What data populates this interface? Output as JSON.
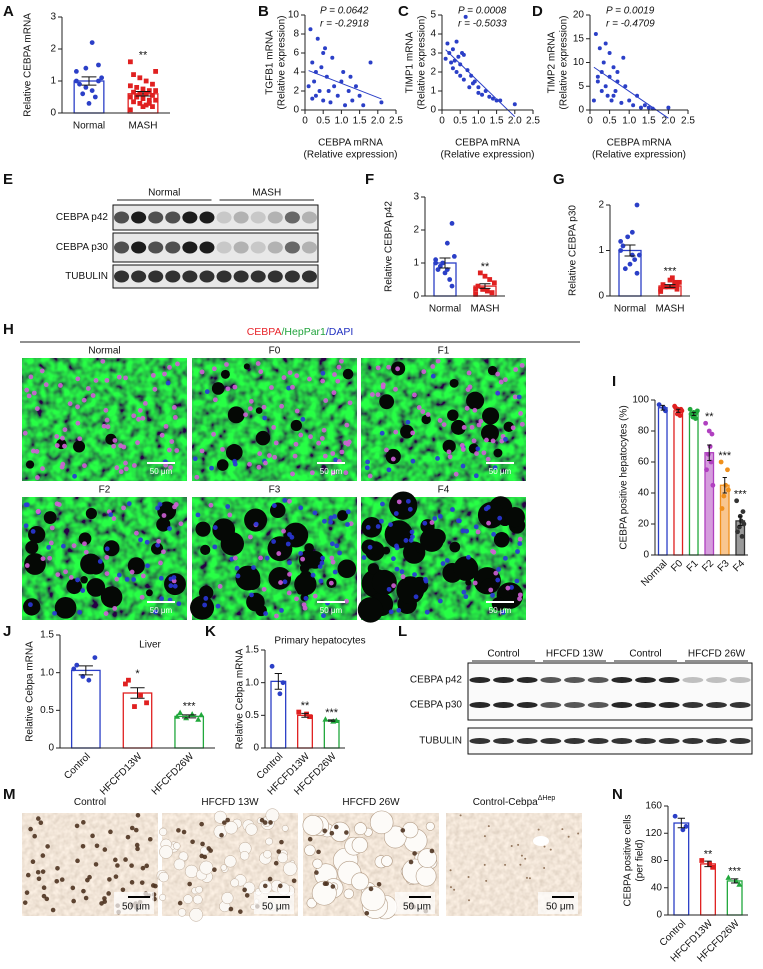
{
  "chart_data": [
    {
      "type": "bar",
      "panel": "A",
      "ylabel": [
        "Relative CEBPA mRNA"
      ],
      "categories": [
        "Normal",
        "MASH"
      ],
      "values": [
        1.0,
        0.6
      ],
      "errors": [
        0.13,
        0.07
      ],
      "colors": [
        "#2b3fc7",
        "#e02020"
      ],
      "markers": [
        "circle",
        "square"
      ],
      "points": [
        [
          1.0,
          1.5,
          2.2,
          0.8,
          0.9,
          1.1,
          0.5,
          0.3,
          0.6,
          1.3,
          1.0,
          0.7,
          1.4
        ],
        [
          0.1,
          0.2,
          0.25,
          0.3,
          0.35,
          0.4,
          0.4,
          0.45,
          0.5,
          0.5,
          0.55,
          0.6,
          0.6,
          0.65,
          0.7,
          0.7,
          0.75,
          0.8,
          0.85,
          0.9,
          1.0,
          1.1,
          1.2,
          1.3,
          0.3,
          0.2,
          0.5,
          1.6
        ]
      ],
      "annotations": [
        null,
        "**"
      ],
      "ylim": [
        0,
        3
      ],
      "yticks": [
        0,
        1,
        2,
        3
      ]
    },
    {
      "type": "scatter",
      "panel": "B",
      "p_text": "P = 0.0642",
      "r_text": "r = -0.2918",
      "xlabel": [
        "CEBPA mRNA",
        "(Relative expression)"
      ],
      "ylabel": [
        "TGFB1 mRNA",
        "(Relative expression)"
      ],
      "color": "#2b3fc7",
      "x": [
        0.1,
        0.15,
        0.2,
        0.25,
        0.3,
        0.35,
        0.4,
        0.45,
        0.5,
        0.55,
        0.6,
        0.65,
        0.7,
        0.75,
        0.8,
        0.9,
        1.0,
        1.05,
        1.1,
        1.2,
        1.25,
        1.3,
        1.4,
        1.5,
        1.6,
        1.8,
        2.1,
        0.3,
        0.5,
        0.2
      ],
      "y": [
        2.5,
        8.5,
        5.0,
        3.0,
        1.5,
        7.5,
        2.0,
        4.5,
        1.0,
        6.5,
        3.5,
        2.0,
        0.8,
        5.5,
        2.5,
        1.5,
        3.0,
        4.0,
        0.5,
        2.0,
        3.5,
        1.0,
        2.5,
        1.5,
        0.5,
        5.0,
        0.8,
        4.0,
        6.0,
        1.2
      ],
      "xlim": [
        0,
        2.5
      ],
      "ylim": [
        0,
        10
      ],
      "xticks": [
        0,
        0.5,
        {
          "value": 1,
          "label": "1.0"
        },
        1.5,
        {
          "value": 2,
          "label": "2.0"
        },
        2.5
      ],
      "yticks": [
        0,
        2,
        4,
        6,
        8,
        10
      ]
    },
    {
      "type": "scatter",
      "panel": "C",
      "p_text": "P = 0.0008",
      "r_text": "r = -0.5033",
      "xlabel": [
        "CEBPA mRNA",
        "(Relative expression)"
      ],
      "ylabel": [
        "TIMP1 mRNA",
        "(Relative expression)"
      ],
      "color": "#2b3fc7",
      "x": [
        0.1,
        0.15,
        0.2,
        0.25,
        0.3,
        0.3,
        0.35,
        0.4,
        0.45,
        0.5,
        0.5,
        0.55,
        0.6,
        0.65,
        0.7,
        0.75,
        0.8,
        0.85,
        0.9,
        1.0,
        1.0,
        1.1,
        1.2,
        1.3,
        1.4,
        1.5,
        1.6,
        2.0,
        0.4,
        0.6
      ],
      "y": [
        2.7,
        3.5,
        3.0,
        2.5,
        2.2,
        3.2,
        2.6,
        2.0,
        2.8,
        2.4,
        1.8,
        3.0,
        1.6,
        4.9,
        2.1,
        1.2,
        1.8,
        1.4,
        1.5,
        0.9,
        1.2,
        0.8,
        1.0,
        0.7,
        0.6,
        0.5,
        0.5,
        0.3,
        3.6,
        2.9
      ],
      "xlim": [
        0,
        2.5
      ],
      "ylim": [
        0,
        5
      ],
      "xticks": [
        0,
        0.5,
        {
          "value": 1,
          "label": "1.0"
        },
        1.5,
        {
          "value": 2,
          "label": "2.0"
        },
        2.5
      ],
      "yticks": [
        0,
        1,
        2,
        3,
        4,
        5
      ]
    },
    {
      "type": "scatter",
      "panel": "D",
      "p_text": "P = 0.0019",
      "r_text": "r = -0.4709",
      "xlabel": [
        "CEBPA mRNA",
        "(Relative expression)"
      ],
      "ylabel": [
        "TIMP2 mRNA",
        "(Relative expression)"
      ],
      "color": "#2b3fc7",
      "x": [
        0.1,
        0.15,
        0.2,
        0.25,
        0.3,
        0.3,
        0.35,
        0.4,
        0.45,
        0.5,
        0.5,
        0.55,
        0.6,
        0.65,
        0.7,
        0.8,
        0.85,
        0.9,
        1.0,
        1.1,
        1.2,
        1.3,
        1.4,
        1.5,
        1.6,
        2.0,
        0.4,
        0.6,
        0.2,
        0.7
      ],
      "y": [
        2,
        16,
        6,
        13,
        4,
        8,
        10,
        5,
        3,
        7,
        12,
        2,
        9,
        4,
        6,
        1.5,
        11,
        5,
        2,
        1,
        3,
        0.5,
        1,
        0.5,
        0.3,
        0.5,
        14,
        3,
        7,
        8
      ],
      "xlim": [
        0,
        2.5
      ],
      "ylim": [
        0,
        20
      ],
      "xticks": [
        0,
        0.5,
        {
          "value": 1,
          "label": "1.0"
        },
        1.5,
        {
          "value": 2,
          "label": "2.0"
        },
        2.5
      ],
      "yticks": [
        0,
        5,
        10,
        15,
        20
      ]
    },
    {
      "type": "bar",
      "panel": "F",
      "ylabel": [
        "Relative CEBPA p42"
      ],
      "categories": [
        "Normal",
        "MASH"
      ],
      "values": [
        1.0,
        0.3
      ],
      "errors": [
        0.15,
        0.07
      ],
      "colors": [
        "#2b3fc7",
        "#e02020"
      ],
      "markers": [
        "circle",
        "square"
      ],
      "points": [
        [
          1.0,
          2.2,
          1.6,
          1.0,
          0.8,
          1.2,
          0.5,
          0.7,
          0.9,
          1.1,
          0.3,
          0.8
        ],
        [
          0.05,
          0.1,
          0.15,
          0.2,
          0.3,
          0.4,
          0.5,
          0.6,
          0.7,
          0.2,
          0.1
        ]
      ],
      "annotations": [
        null,
        "**"
      ],
      "ylim": [
        0,
        3
      ],
      "yticks": [
        0,
        1,
        2,
        3
      ]
    },
    {
      "type": "bar",
      "panel": "G",
      "ylabel": [
        "Relative CEBPA p30"
      ],
      "categories": [
        "Normal",
        "MASH"
      ],
      "values": [
        1.0,
        0.22
      ],
      "errors": [
        0.12,
        0.03
      ],
      "colors": [
        "#2b3fc7",
        "#e02020"
      ],
      "markers": [
        "circle",
        "square"
      ],
      "points": [
        [
          1.0,
          2.0,
          1.4,
          1.3,
          1.1,
          0.9,
          0.8,
          0.7,
          0.6,
          1.2,
          0.5,
          0.9
        ],
        [
          0.1,
          0.15,
          0.2,
          0.2,
          0.25,
          0.3,
          0.3,
          0.35,
          0.2,
          0.15,
          0.25,
          0.4
        ]
      ],
      "annotations": [
        null,
        "***"
      ],
      "ylim": [
        0,
        2
      ],
      "yticks": [
        0,
        1,
        2
      ]
    },
    {
      "type": "bar",
      "panel": "I",
      "ylabel": [
        "CEBPA positive hepatocytes (%)"
      ],
      "categories": [
        "Normal",
        "F0",
        "F1",
        "F2",
        "F3",
        "F4"
      ],
      "values": [
        95,
        93,
        91,
        66,
        45,
        22
      ],
      "errors": [
        1.5,
        1,
        1,
        5,
        5,
        3
      ],
      "colors": [
        "#2b3fc7",
        "#e02020",
        "#21a83c",
        "#b040c0",
        "#f0901c",
        "#333333"
      ],
      "fills": [
        "#ffffff",
        "#ffffff",
        "#ffffff",
        "#d59ddd",
        "#f8c690",
        "#9a9a9a"
      ],
      "markers": [
        "circle",
        "circle",
        "circle",
        "circle",
        "circle",
        "circle"
      ],
      "points": [
        [
          97,
          93,
          95
        ],
        [
          96,
          94,
          92,
          91,
          95,
          93,
          90,
          94
        ],
        [
          94,
          92,
          90,
          89,
          91,
          93,
          88,
          92
        ],
        [
          85,
          78,
          70,
          65,
          55,
          45,
          60,
          80
        ],
        [
          60,
          55,
          45,
          38,
          30,
          42
        ],
        [
          35,
          28,
          22,
          18,
          15,
          20,
          12,
          25
        ]
      ],
      "annotations": [
        null,
        null,
        null,
        "**",
        "***",
        "***"
      ],
      "ylim": [
        0,
        100
      ],
      "yticks": [
        0,
        20,
        40,
        60,
        80,
        100
      ]
    },
    {
      "type": "bar",
      "panel": "J",
      "subtitle": "Liver",
      "ylabel": [
        "Relative Cebpa mRNA"
      ],
      "categories": [
        "Control",
        "HFCFD13W",
        "HFCFD26W"
      ],
      "values": [
        1.03,
        0.73,
        0.42
      ],
      "errors": [
        0.06,
        0.07,
        0.02
      ],
      "colors": [
        "#2b3fc7",
        "#e02020",
        "#21a83c"
      ],
      "markers": [
        "circle",
        "square",
        "triangle"
      ],
      "points": [
        [
          1.05,
          1.2,
          0.9,
          0.95,
          1.1
        ],
        [
          0.85,
          0.6,
          0.7,
          0.55,
          0.9
        ],
        [
          0.42,
          0.38,
          0.45,
          0.4,
          0.47,
          0.44
        ]
      ],
      "annotations": [
        null,
        "*",
        "***"
      ],
      "ylim": [
        0,
        1.5
      ],
      "yticks": [
        0,
        0.5,
        {
          "value": 1,
          "label": "1.0"
        },
        1.5
      ]
    },
    {
      "type": "bar",
      "panel": "K",
      "subtitle": "Primary hepatocytes",
      "ylabel": [
        "Relative Cebpa mRNA"
      ],
      "categories": [
        "Control",
        "HFCFD13W",
        "HFCFD26W"
      ],
      "values": [
        1.02,
        0.5,
        0.42
      ],
      "errors": [
        0.12,
        0.03,
        0.01
      ],
      "colors": [
        "#2b3fc7",
        "#e02020",
        "#21a83c"
      ],
      "markers": [
        "circle",
        "square",
        "triangle"
      ],
      "points": [
        [
          1.25,
          1.0,
          0.83
        ],
        [
          0.55,
          0.48,
          0.52
        ],
        [
          0.44,
          0.42,
          0.41
        ]
      ],
      "annotations": [
        null,
        "**",
        "***"
      ],
      "ylim": [
        0,
        1.5
      ],
      "yticks": [
        0,
        0.5,
        {
          "value": 1,
          "label": "1.0"
        },
        1.5
      ]
    },
    {
      "type": "bar",
      "panel": "N",
      "ylabel": [
        "CEBPA positive cells",
        "(per field)"
      ],
      "categories": [
        "Control",
        "HFCFD13W",
        "HFCFD26W"
      ],
      "values": [
        135,
        75,
        50
      ],
      "errors": [
        7,
        4,
        3
      ],
      "colors": [
        "#2b3fc7",
        "#e02020",
        "#21a83c"
      ],
      "markers": [
        "circle",
        "square",
        "triangle"
      ],
      "points": [
        [
          145,
          130,
          125
        ],
        [
          80,
          70,
          75
        ],
        [
          55,
          45,
          50
        ]
      ],
      "annotations": [
        null,
        "**",
        "***"
      ],
      "ylim": [
        0,
        160
      ],
      "yticks": [
        0,
        40,
        80,
        120,
        160
      ]
    }
  ],
  "blots": [
    {
      "panel": "E",
      "groups": [
        "Normal",
        "MASH"
      ],
      "rows": [
        "CEBPA p42",
        "CEBPA p30",
        "TUBULIN"
      ]
    },
    {
      "panel": "L",
      "groups": [
        "Control",
        "HFCFD 13W",
        "Control",
        "HFCFD 26W"
      ],
      "rows": [
        "CEBPA p42",
        "CEBPA p30",
        "TUBULIN"
      ]
    }
  ],
  "micrographs": [
    {
      "panel": "H",
      "stain": [
        {
          "text": "CEBPA",
          "color": "#e8262d"
        },
        {
          "text": "/HepPar1",
          "color": "#21a33c"
        },
        {
          "text": "/DAPI",
          "color": "#2030c0"
        }
      ],
      "images": [
        {
          "label": "Normal"
        },
        {
          "label": "F0"
        },
        {
          "label": "F1"
        },
        {
          "label": "F2"
        },
        {
          "label": "F3"
        },
        {
          "label": "F4"
        }
      ],
      "scale_bar": "50 μm"
    },
    {
      "panel": "M",
      "images": [
        {
          "label": "Control"
        },
        {
          "label": "HFCFD 13W"
        },
        {
          "label": "HFCFD 26W"
        },
        {
          "label": "Control-Cebpa",
          "sup": "ΔHep"
        }
      ],
      "scale_bar": "50 μm"
    }
  ]
}
